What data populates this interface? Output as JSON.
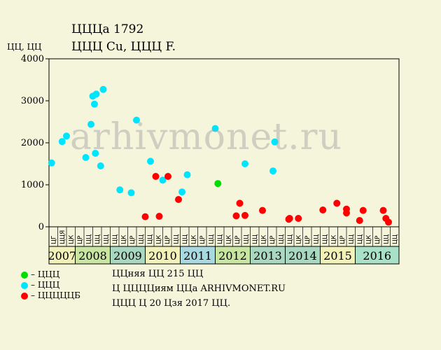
{
  "header": {
    "title": "ЦЦЦа 1792",
    "subtitle": "ЦЦЦ Cu, ЦЦЦ F."
  },
  "colors": {
    "background": "#f5f5dc",
    "green": "#00dd00",
    "cyan": "#00e5ff",
    "red": "#ff0000",
    "year_cells": [
      "#f2f2b8",
      "#c8e6a0",
      "#a8d8c0",
      "#f2f2b8",
      "#a8d8e0",
      "#c8e6a0",
      "#a8d8c0",
      "#a8d8c0",
      "#f2f2b8",
      "#a8e0c8"
    ]
  },
  "legend": [
    {
      "color": "green",
      "label": "– ЦЦЦ"
    },
    {
      "color": "cyan",
      "label": "– ЦЦЦ"
    },
    {
      "color": "red",
      "label": "– ЦЦЦЦЦБ"
    }
  ],
  "notes": [
    "ЦЦняя ЦЦ 215 ЦЦ",
    "Ц ЦЦЦЦиям ЦЦа ARHIVMONET.RU",
    "ЦЦЦ Ц 20 Цзя 2017 ЦЦ."
  ],
  "watermark": "arhivmonet.ru",
  "chart_data": {
    "type": "scatter",
    "ylabel": "ЦЦ, ЦЦ",
    "ylim": [
      0,
      4000
    ],
    "yticks": [
      0,
      1000,
      2000,
      3000,
      4000
    ],
    "grid": false,
    "month_ticks": [
      "ЦГ",
      "ЦЦЯ",
      "ЦК",
      "ЦР",
      "ЦЦ",
      "ЦЦ",
      "ЦЦ",
      "ЦЦ",
      "ЦК",
      "ЦР",
      "ЦЦ",
      "ЦЦ",
      "ЦК",
      "ЦР",
      "ЦЦ",
      "ЦЦ",
      "ЦК",
      "ЦР",
      "ЦЦ",
      "ЦЦ",
      "ЦК",
      "ЦР",
      "ЦЦ",
      "ЦЦ",
      "ЦК",
      "ЦР",
      "ЦЦ",
      "ЦЦ",
      "ЦК",
      "ЦР",
      "ЦЦ",
      "ЦЦ",
      "ЦК",
      "ЦР",
      "ЦЦ",
      "ЦЦ",
      "ЦК",
      "ЦР",
      "ЦЦ",
      "ЦЦ"
    ],
    "years": [
      {
        "label": "2007",
        "start": 0,
        "end": 3
      },
      {
        "label": "2008",
        "start": 3,
        "end": 7
      },
      {
        "label": "2009",
        "start": 7,
        "end": 11
      },
      {
        "label": "2010",
        "start": 11,
        "end": 15
      },
      {
        "label": "2011",
        "start": 15,
        "end": 19
      },
      {
        "label": "2012",
        "start": 19,
        "end": 23
      },
      {
        "label": "2013",
        "start": 23,
        "end": 27
      },
      {
        "label": "2014",
        "start": 27,
        "end": 31
      },
      {
        "label": "2015",
        "start": 31,
        "end": 35
      },
      {
        "label": "2016",
        "start": 35,
        "end": 40
      }
    ],
    "x_range": [
      0,
      40
    ],
    "series": [
      {
        "name": "– ЦЦЦ",
        "color": "green",
        "points": [
          {
            "x": 19.3,
            "y": 1030
          }
        ]
      },
      {
        "name": "– ЦЦЦ",
        "color": "cyan",
        "points": [
          {
            "x": 0.3,
            "y": 1520
          },
          {
            "x": 1.5,
            "y": 2030
          },
          {
            "x": 2.0,
            "y": 2160
          },
          {
            "x": 4.2,
            "y": 1650
          },
          {
            "x": 4.8,
            "y": 2440
          },
          {
            "x": 5.0,
            "y": 3110
          },
          {
            "x": 5.2,
            "y": 2920
          },
          {
            "x": 5.3,
            "y": 1750
          },
          {
            "x": 5.4,
            "y": 3160
          },
          {
            "x": 5.9,
            "y": 1450
          },
          {
            "x": 6.2,
            "y": 3270
          },
          {
            "x": 8.1,
            "y": 880
          },
          {
            "x": 9.4,
            "y": 810
          },
          {
            "x": 10.0,
            "y": 2540
          },
          {
            "x": 11.6,
            "y": 1560
          },
          {
            "x": 13.0,
            "y": 1110
          },
          {
            "x": 15.2,
            "y": 830
          },
          {
            "x": 15.8,
            "y": 1240
          },
          {
            "x": 19.0,
            "y": 2340
          },
          {
            "x": 22.4,
            "y": 1500
          },
          {
            "x": 25.6,
            "y": 1330
          },
          {
            "x": 25.8,
            "y": 2020
          }
        ]
      },
      {
        "name": "– ЦЦЦЦЦБ",
        "color": "red",
        "points": [
          {
            "x": 11.0,
            "y": 240
          },
          {
            "x": 12.2,
            "y": 1200
          },
          {
            "x": 12.6,
            "y": 250
          },
          {
            "x": 13.6,
            "y": 1200
          },
          {
            "x": 14.8,
            "y": 650
          },
          {
            "x": 21.4,
            "y": 260
          },
          {
            "x": 21.8,
            "y": 560
          },
          {
            "x": 22.4,
            "y": 270
          },
          {
            "x": 24.4,
            "y": 390
          },
          {
            "x": 27.4,
            "y": 180
          },
          {
            "x": 27.5,
            "y": 200
          },
          {
            "x": 28.5,
            "y": 200
          },
          {
            "x": 31.3,
            "y": 400
          },
          {
            "x": 32.9,
            "y": 560
          },
          {
            "x": 34.0,
            "y": 330
          },
          {
            "x": 34.0,
            "y": 420
          },
          {
            "x": 35.5,
            "y": 150
          },
          {
            "x": 35.9,
            "y": 390
          },
          {
            "x": 38.2,
            "y": 390
          },
          {
            "x": 38.5,
            "y": 200
          },
          {
            "x": 38.8,
            "y": 110
          }
        ]
      }
    ]
  }
}
